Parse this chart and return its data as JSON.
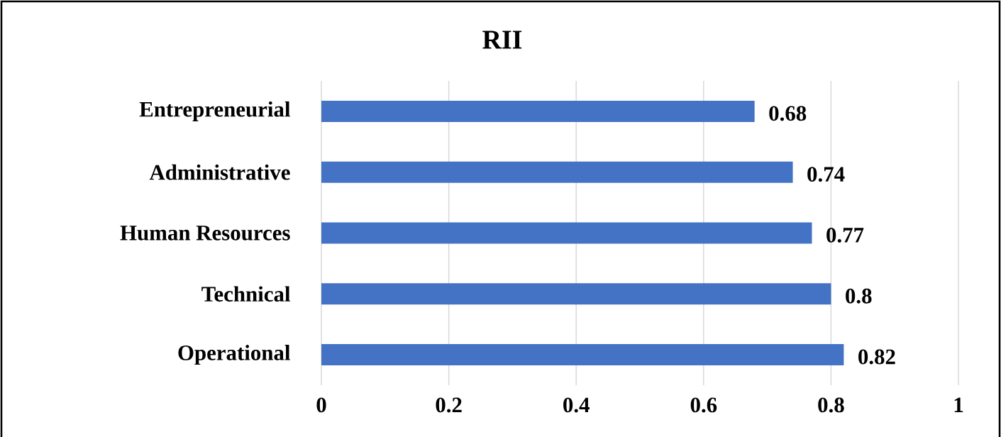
{
  "chart_data": {
    "type": "bar",
    "orientation": "horizontal",
    "title": "RII",
    "categories": [
      "Entrepreneurial",
      "Administrative",
      "Human Resources",
      "Technical",
      "Operational"
    ],
    "values": [
      0.68,
      0.74,
      0.77,
      0.8,
      0.82
    ],
    "color": "#4472c4",
    "xlim": [
      0,
      1
    ],
    "xticks": [
      0,
      0.2,
      0.4,
      0.6,
      0.8,
      1
    ],
    "grid": "x",
    "data_labels": true
  }
}
